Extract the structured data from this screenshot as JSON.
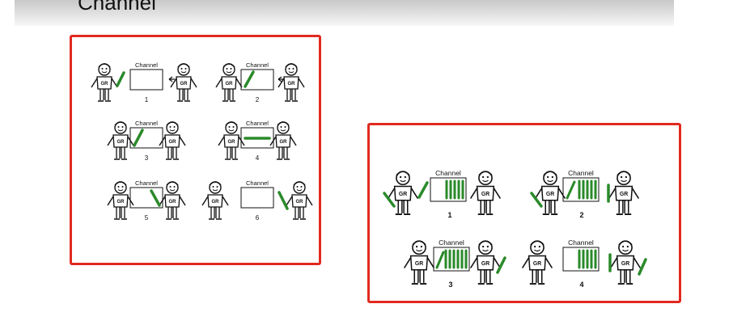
{
  "header": {
    "title": "Channel"
  },
  "colors": {
    "accent_border": "#e12a1f",
    "baton": "#2a8a2a",
    "ink": "#111111"
  },
  "panels": [
    {
      "scenes": [
        {
          "channel_label": "Channel",
          "number": "1",
          "shirt_left": "GR",
          "shirt_right": "GR"
        },
        {
          "channel_label": "Channel",
          "number": "2",
          "shirt_left": "GR",
          "shirt_right": "GR"
        },
        {
          "channel_label": "Channel",
          "number": "3",
          "shirt_left": "GR",
          "shirt_right": "GR"
        },
        {
          "channel_label": "Channel",
          "number": "4",
          "shirt_left": "GR",
          "shirt_right": "GR"
        },
        {
          "channel_label": "Channel",
          "number": "5",
          "shirt_left": "GR",
          "shirt_right": "GR"
        },
        {
          "channel_label": "Channel",
          "number": "6",
          "shirt_left": "GR",
          "shirt_right": "GR"
        }
      ]
    },
    {
      "scenes": [
        {
          "channel_label": "Channel",
          "number": "1",
          "shirt_left": "GR",
          "shirt_right": "GR"
        },
        {
          "channel_label": "Channel",
          "number": "2",
          "shirt_left": "GR",
          "shirt_right": "GR"
        },
        {
          "channel_label": "Channel",
          "number": "3",
          "shirt_left": "GR",
          "shirt_right": "GR"
        },
        {
          "channel_label": "Channel",
          "number": "4",
          "shirt_left": "GR",
          "shirt_right": "GR"
        }
      ]
    }
  ]
}
